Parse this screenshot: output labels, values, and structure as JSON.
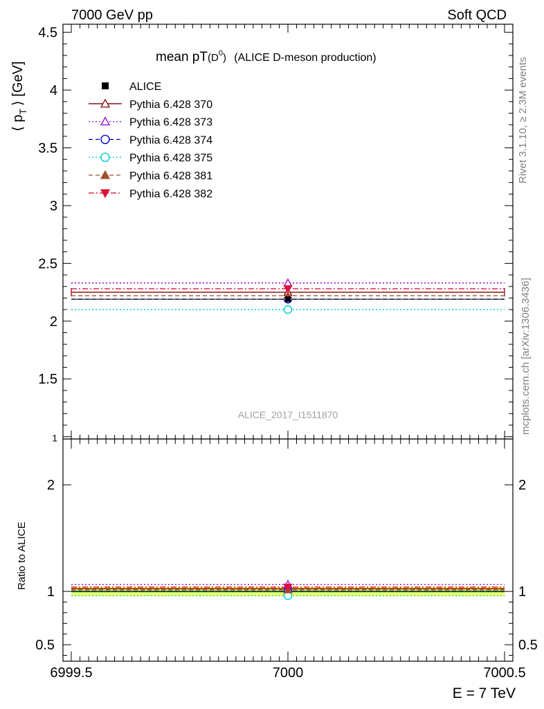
{
  "header": {
    "left": "7000 GeV pp",
    "right": "Soft QCD"
  },
  "side_labels": {
    "rivet": "Rivet 3.1.10, ≥ 2.3M events",
    "mcplots": "mcplots.cern.ch [arXiv:1306.3436]"
  },
  "chart_data": [
    {
      "type": "scatter",
      "title_main": "mean pT",
      "title_sub": "(D",
      "title_sup": "0",
      "title_close": ")",
      "title_rest": "(ALICE D-meson production)",
      "ylabel": "⟨ p",
      "ylabel_sub": "T",
      "ylabel_rest": "⟩ [GeV]",
      "analysis_tag": "ALICE_2017_I1511870",
      "xlim": [
        6999.5,
        7000.5
      ],
      "ylim": [
        0.98,
        4.57
      ],
      "yticks": [
        "1",
        "1.5",
        "2",
        "2.5",
        "3",
        "3.5",
        "4",
        "4.5"
      ],
      "ytick_values": [
        1,
        1.5,
        2,
        2.5,
        3,
        3.5,
        4,
        4.5
      ],
      "data_point": {
        "name": "ALICE",
        "x": 7000,
        "y": 2.19,
        "color": "#000000"
      },
      "series": [
        {
          "name": "Pythia 6.428 370",
          "y": 2.25,
          "color": "#800000",
          "marker": "triangle-open",
          "dash": "solid"
        },
        {
          "name": "Pythia 6.428 373",
          "y": 2.33,
          "color": "#9400d3",
          "marker": "triangle-open",
          "dash": "dotted"
        },
        {
          "name": "Pythia 6.428 374",
          "y": 2.19,
          "color": "#0000cd",
          "marker": "circle-open",
          "dash": "dashed"
        },
        {
          "name": "Pythia 6.428 375",
          "y": 2.1,
          "color": "#00ced1",
          "marker": "circle-open",
          "dash": "dotted"
        },
        {
          "name": "Pythia 6.428 381",
          "y": 2.22,
          "color": "#a0522d",
          "marker": "triangle-filled",
          "dash": "dashed"
        },
        {
          "name": "Pythia 6.428 382",
          "y": 2.28,
          "color": "#dc143c",
          "marker": "triangle-down-filled",
          "dash": "dashdot"
        }
      ],
      "legend_placement": "top-left"
    },
    {
      "type": "scatter",
      "ylabel": "Ratio to ALICE",
      "xlabel": "E = 7 TeV",
      "xlim": [
        6999.5,
        7000.5
      ],
      "ylim": [
        0.345,
        2.43
      ],
      "xticks": [
        "6999.5",
        "7000",
        "7000.5"
      ],
      "xtick_values": [
        6999.5,
        7000,
        7000.5
      ],
      "yticks": [
        "0.5",
        "1",
        "2"
      ],
      "ytick_values": [
        0.5,
        1,
        2
      ],
      "band_inner": [
        0.985,
        1.015
      ],
      "band_outer": [
        0.955,
        1.045
      ],
      "band_inner_color": "#ffff66",
      "band_outer_color": "#9ef07a",
      "ratios": [
        {
          "name": "Pythia 6.428 370",
          "y": 1.025,
          "color": "#800000",
          "marker": "triangle-open",
          "dash": "solid"
        },
        {
          "name": "Pythia 6.428 373",
          "y": 1.065,
          "color": "#9400d3",
          "marker": "triangle-open",
          "dash": "dotted"
        },
        {
          "name": "Pythia 6.428 374",
          "y": 1.0,
          "color": "#0000cd",
          "marker": "circle-open",
          "dash": "dashed"
        },
        {
          "name": "Pythia 6.428 375",
          "y": 0.96,
          "color": "#00ced1",
          "marker": "circle-open",
          "dash": "dotted"
        },
        {
          "name": "Pythia 6.428 381",
          "y": 1.015,
          "color": "#a0522d",
          "marker": "triangle-filled",
          "dash": "dashed"
        },
        {
          "name": "Pythia 6.428 382",
          "y": 1.04,
          "color": "#dc143c",
          "marker": "triangle-down-filled",
          "dash": "dashdot"
        }
      ]
    }
  ]
}
